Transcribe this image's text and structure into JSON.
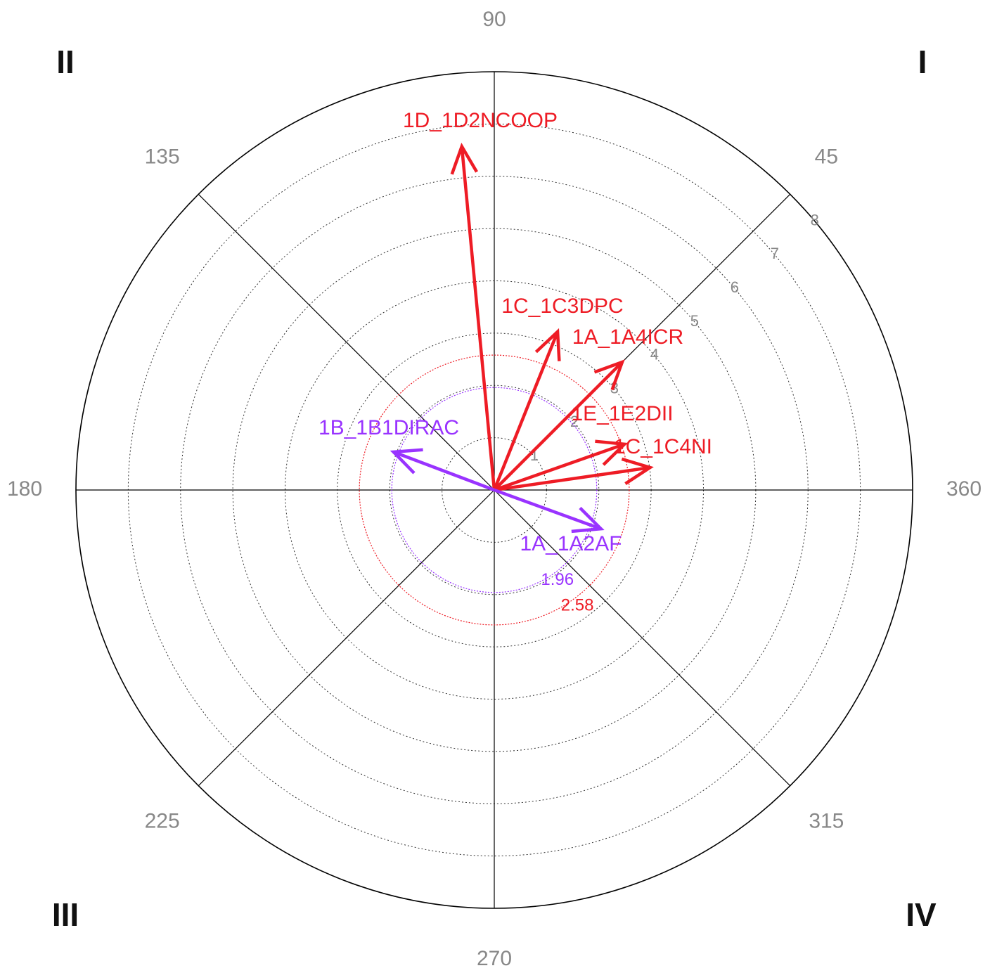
{
  "chart_data": {
    "type": "polar-vector",
    "rlim": [
      0,
      8
    ],
    "radial_ticks": [
      1,
      2,
      3,
      4,
      5,
      6,
      7,
      8
    ],
    "angle_ticks": [
      45,
      90,
      135,
      180,
      225,
      270,
      315,
      360
    ],
    "quadrants": [
      "I",
      "II",
      "III",
      "IV"
    ],
    "critical_circles": [
      {
        "value": 1.96,
        "color": "#9933ff"
      },
      {
        "value": 2.58,
        "color": "#ee1c25"
      }
    ],
    "series": [
      {
        "name": "1D_1D2NCOOP",
        "color": "#ee1c25",
        "angle": 95.4,
        "length": 6.6
      },
      {
        "name": "1C_1C3DPC",
        "color": "#ee1c25",
        "angle": 68.2,
        "length": 3.26
      },
      {
        "name": "1A_1A4ICR",
        "color": "#ee1c25",
        "angle": 45,
        "length": 3.46
      },
      {
        "name": "1E_1E2DII",
        "color": "#ee1c25",
        "angle": 19.4,
        "length": 2.64
      },
      {
        "name": "1C_1C4NI",
        "color": "#ee1c25",
        "angle": 8.2,
        "length": 3.01
      },
      {
        "name": "1B_1B1DIRAC",
        "color": "#9933ff",
        "angle": 159.3,
        "length": 2.06
      },
      {
        "name": "1A_1A2AF",
        "color": "#9933ff",
        "angle": 340,
        "length": 2.17
      }
    ]
  }
}
